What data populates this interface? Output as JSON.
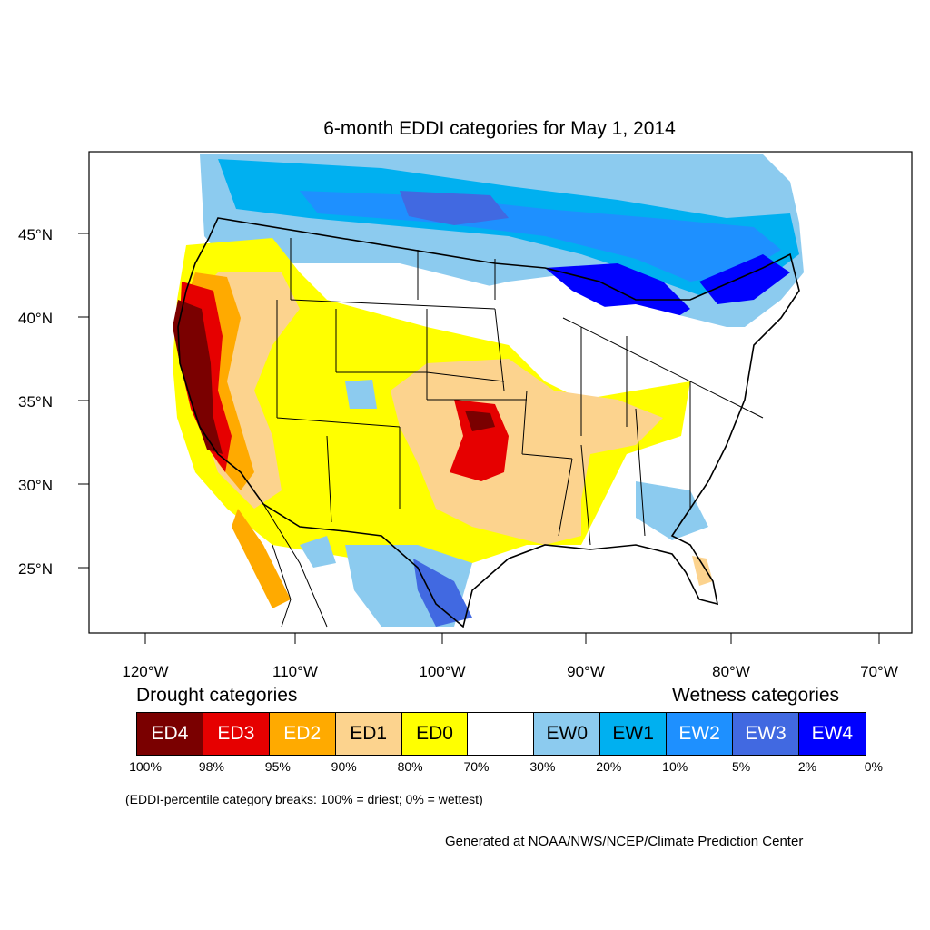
{
  "title": "6-month EDDI categories for May 1, 2014",
  "axes": {
    "lat_labels": [
      "45°N",
      "40°N",
      "35°N",
      "30°N",
      "25°N"
    ],
    "lon_labels": [
      "120°W",
      "110°W",
      "100°W",
      "90°W",
      "80°W",
      "70°W"
    ]
  },
  "legend": {
    "drought_title": "Drought categories",
    "wetness_title": "Wetness categories",
    "categories": [
      {
        "label": "ED4",
        "color": "#7a0000",
        "text_color": "#ffffff"
      },
      {
        "label": "ED3",
        "color": "#e60000",
        "text_color": "#ffffff"
      },
      {
        "label": "ED2",
        "color": "#ffaa00",
        "text_color": "#ffffff"
      },
      {
        "label": "ED1",
        "color": "#fcd38e",
        "text_color": "#000000"
      },
      {
        "label": "ED0",
        "color": "#ffff00",
        "text_color": "#000000"
      },
      {
        "label": "",
        "color": "#ffffff",
        "text_color": "#000000"
      },
      {
        "label": "EW0",
        "color": "#8ccbef",
        "text_color": "#000000"
      },
      {
        "label": "EW1",
        "color": "#00b0f0",
        "text_color": "#000000"
      },
      {
        "label": "EW2",
        "color": "#1e90ff",
        "text_color": "#ffffff"
      },
      {
        "label": "EW3",
        "color": "#4169e1",
        "text_color": "#ffffff"
      },
      {
        "label": "EW4",
        "color": "#0000ff",
        "text_color": "#ffffff"
      }
    ],
    "breaks": [
      "100%",
      "98%",
      "95%",
      "90%",
      "80%",
      "70%",
      "30%",
      "20%",
      "10%",
      "5%",
      "2%",
      "0%"
    ]
  },
  "note": "(EDDI-percentile category breaks: 100% = driest; 0% = wettest)",
  "credit": "Generated at NOAA/NWS/NCEP/Climate Prediction Center"
}
